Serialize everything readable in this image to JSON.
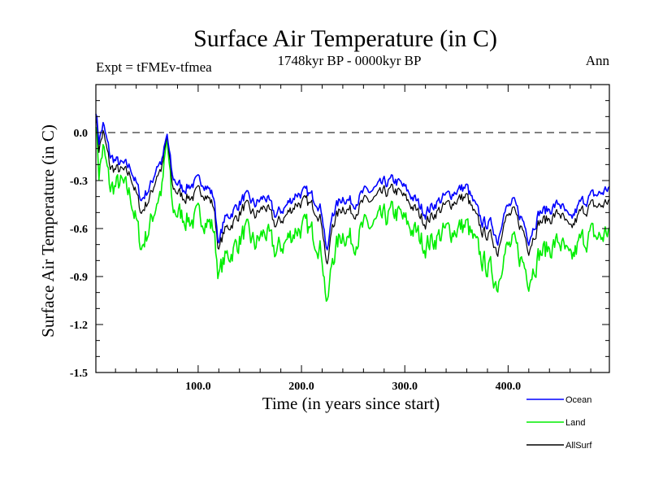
{
  "chart_data": {
    "type": "line",
    "title": "Surface Air Temperature (in C)",
    "subtitle": "1748kyr BP - 0000kyr BP",
    "left_label": "Expt = tFMEv-tfmea",
    "right_label": "Ann",
    "xlabel": "Time (in years since start)",
    "ylabel": "Surface Air Temperature (in C)",
    "xlim": [
      1,
      498
    ],
    "ylim": [
      -1.5,
      0.3
    ],
    "x_ticks": [
      100,
      200,
      300,
      400
    ],
    "x_tick_labels": [
      "100.0",
      "200.0",
      "300.0",
      "400.0"
    ],
    "y_ticks": [
      0.0,
      -0.3,
      -0.6,
      -0.9,
      -1.2,
      -1.5
    ],
    "y_tick_labels": [
      "0.0",
      "-0.3",
      "-0.6",
      "-0.9",
      "-1.2",
      "-1.5"
    ],
    "reference_line": 0.0,
    "legend_position": "bottom-right",
    "series": [
      {
        "name": "Ocean",
        "color": "#0000ff",
        "anchors": [
          [
            1,
            0.15
          ],
          [
            4,
            -0.05
          ],
          [
            8,
            0.05
          ],
          [
            15,
            -0.15
          ],
          [
            25,
            -0.2
          ],
          [
            35,
            -0.22
          ],
          [
            45,
            -0.42
          ],
          [
            55,
            -0.32
          ],
          [
            60,
            -0.2
          ],
          [
            65,
            -0.18
          ],
          [
            70,
            -0.02
          ],
          [
            75,
            -0.28
          ],
          [
            85,
            -0.35
          ],
          [
            95,
            -0.32
          ],
          [
            105,
            -0.3
          ],
          [
            115,
            -0.4
          ],
          [
            120,
            -0.7
          ],
          [
            125,
            -0.55
          ],
          [
            135,
            -0.48
          ],
          [
            145,
            -0.4
          ],
          [
            155,
            -0.45
          ],
          [
            165,
            -0.4
          ],
          [
            175,
            -0.52
          ],
          [
            185,
            -0.46
          ],
          [
            195,
            -0.38
          ],
          [
            205,
            -0.38
          ],
          [
            215,
            -0.42
          ],
          [
            220,
            -0.5
          ],
          [
            225,
            -0.76
          ],
          [
            230,
            -0.5
          ],
          [
            240,
            -0.4
          ],
          [
            250,
            -0.44
          ],
          [
            260,
            -0.38
          ],
          [
            270,
            -0.36
          ],
          [
            280,
            -0.32
          ],
          [
            290,
            -0.3
          ],
          [
            295,
            -0.32
          ],
          [
            300,
            -0.35
          ],
          [
            310,
            -0.42
          ],
          [
            320,
            -0.5
          ],
          [
            330,
            -0.44
          ],
          [
            340,
            -0.4
          ],
          [
            350,
            -0.36
          ],
          [
            360,
            -0.34
          ],
          [
            365,
            -0.42
          ],
          [
            375,
            -0.56
          ],
          [
            385,
            -0.58
          ],
          [
            390,
            -0.68
          ],
          [
            395,
            -0.5
          ],
          [
            405,
            -0.44
          ],
          [
            415,
            -0.56
          ],
          [
            420,
            -0.66
          ],
          [
            430,
            -0.5
          ],
          [
            440,
            -0.48
          ],
          [
            450,
            -0.44
          ],
          [
            460,
            -0.56
          ],
          [
            470,
            -0.44
          ],
          [
            480,
            -0.4
          ],
          [
            490,
            -0.38
          ],
          [
            498,
            -0.34
          ]
        ]
      },
      {
        "name": "Land",
        "color": "#00ee00",
        "anchors": [
          [
            1,
            0.1
          ],
          [
            4,
            -0.25
          ],
          [
            8,
            -0.1
          ],
          [
            15,
            -0.35
          ],
          [
            25,
            -0.32
          ],
          [
            35,
            -0.4
          ],
          [
            45,
            -0.72
          ],
          [
            55,
            -0.55
          ],
          [
            60,
            -0.42
          ],
          [
            65,
            -0.35
          ],
          [
            70,
            -0.05
          ],
          [
            75,
            -0.48
          ],
          [
            85,
            -0.52
          ],
          [
            95,
            -0.55
          ],
          [
            105,
            -0.52
          ],
          [
            115,
            -0.6
          ],
          [
            120,
            -0.9
          ],
          [
            125,
            -0.8
          ],
          [
            135,
            -0.72
          ],
          [
            145,
            -0.62
          ],
          [
            155,
            -0.7
          ],
          [
            165,
            -0.62
          ],
          [
            175,
            -0.75
          ],
          [
            185,
            -0.68
          ],
          [
            195,
            -0.6
          ],
          [
            205,
            -0.6
          ],
          [
            215,
            -0.66
          ],
          [
            220,
            -0.76
          ],
          [
            225,
            -1.1
          ],
          [
            230,
            -0.78
          ],
          [
            240,
            -0.62
          ],
          [
            250,
            -0.68
          ],
          [
            260,
            -0.6
          ],
          [
            270,
            -0.58
          ],
          [
            280,
            -0.54
          ],
          [
            290,
            -0.5
          ],
          [
            295,
            -0.52
          ],
          [
            300,
            -0.56
          ],
          [
            310,
            -0.62
          ],
          [
            320,
            -0.7
          ],
          [
            330,
            -0.66
          ],
          [
            340,
            -0.62
          ],
          [
            350,
            -0.6
          ],
          [
            360,
            -0.58
          ],
          [
            365,
            -0.66
          ],
          [
            375,
            -0.8
          ],
          [
            385,
            -0.88
          ],
          [
            390,
            -0.95
          ],
          [
            395,
            -0.75
          ],
          [
            405,
            -0.7
          ],
          [
            415,
            -0.82
          ],
          [
            420,
            -0.9
          ],
          [
            430,
            -0.76
          ],
          [
            440,
            -0.72
          ],
          [
            450,
            -0.68
          ],
          [
            460,
            -0.82
          ],
          [
            470,
            -0.68
          ],
          [
            480,
            -0.64
          ],
          [
            490,
            -0.66
          ],
          [
            498,
            -0.6
          ]
        ]
      },
      {
        "name": "AllSurf",
        "color": "#000000",
        "anchors": [
          [
            1,
            0.12
          ],
          [
            4,
            -0.1
          ],
          [
            8,
            0.0
          ],
          [
            15,
            -0.22
          ],
          [
            25,
            -0.24
          ],
          [
            35,
            -0.27
          ],
          [
            45,
            -0.5
          ],
          [
            55,
            -0.38
          ],
          [
            60,
            -0.26
          ],
          [
            65,
            -0.22
          ],
          [
            70,
            -0.03
          ],
          [
            75,
            -0.34
          ],
          [
            85,
            -0.4
          ],
          [
            95,
            -0.4
          ],
          [
            105,
            -0.36
          ],
          [
            115,
            -0.46
          ],
          [
            120,
            -0.74
          ],
          [
            125,
            -0.62
          ],
          [
            135,
            -0.55
          ],
          [
            145,
            -0.46
          ],
          [
            155,
            -0.52
          ],
          [
            165,
            -0.46
          ],
          [
            175,
            -0.58
          ],
          [
            185,
            -0.52
          ],
          [
            195,
            -0.44
          ],
          [
            205,
            -0.44
          ],
          [
            215,
            -0.48
          ],
          [
            220,
            -0.57
          ],
          [
            225,
            -0.85
          ],
          [
            230,
            -0.57
          ],
          [
            240,
            -0.46
          ],
          [
            250,
            -0.5
          ],
          [
            260,
            -0.44
          ],
          [
            270,
            -0.42
          ],
          [
            280,
            -0.38
          ],
          [
            290,
            -0.36
          ],
          [
            295,
            -0.38
          ],
          [
            300,
            -0.41
          ],
          [
            310,
            -0.48
          ],
          [
            320,
            -0.56
          ],
          [
            330,
            -0.5
          ],
          [
            340,
            -0.46
          ],
          [
            350,
            -0.42
          ],
          [
            360,
            -0.4
          ],
          [
            365,
            -0.48
          ],
          [
            375,
            -0.62
          ],
          [
            385,
            -0.66
          ],
          [
            390,
            -0.75
          ],
          [
            395,
            -0.56
          ],
          [
            405,
            -0.5
          ],
          [
            415,
            -0.62
          ],
          [
            420,
            -0.72
          ],
          [
            430,
            -0.56
          ],
          [
            440,
            -0.54
          ],
          [
            450,
            -0.5
          ],
          [
            460,
            -0.62
          ],
          [
            470,
            -0.5
          ],
          [
            480,
            -0.46
          ],
          [
            490,
            -0.46
          ],
          [
            498,
            -0.42
          ]
        ]
      }
    ]
  }
}
